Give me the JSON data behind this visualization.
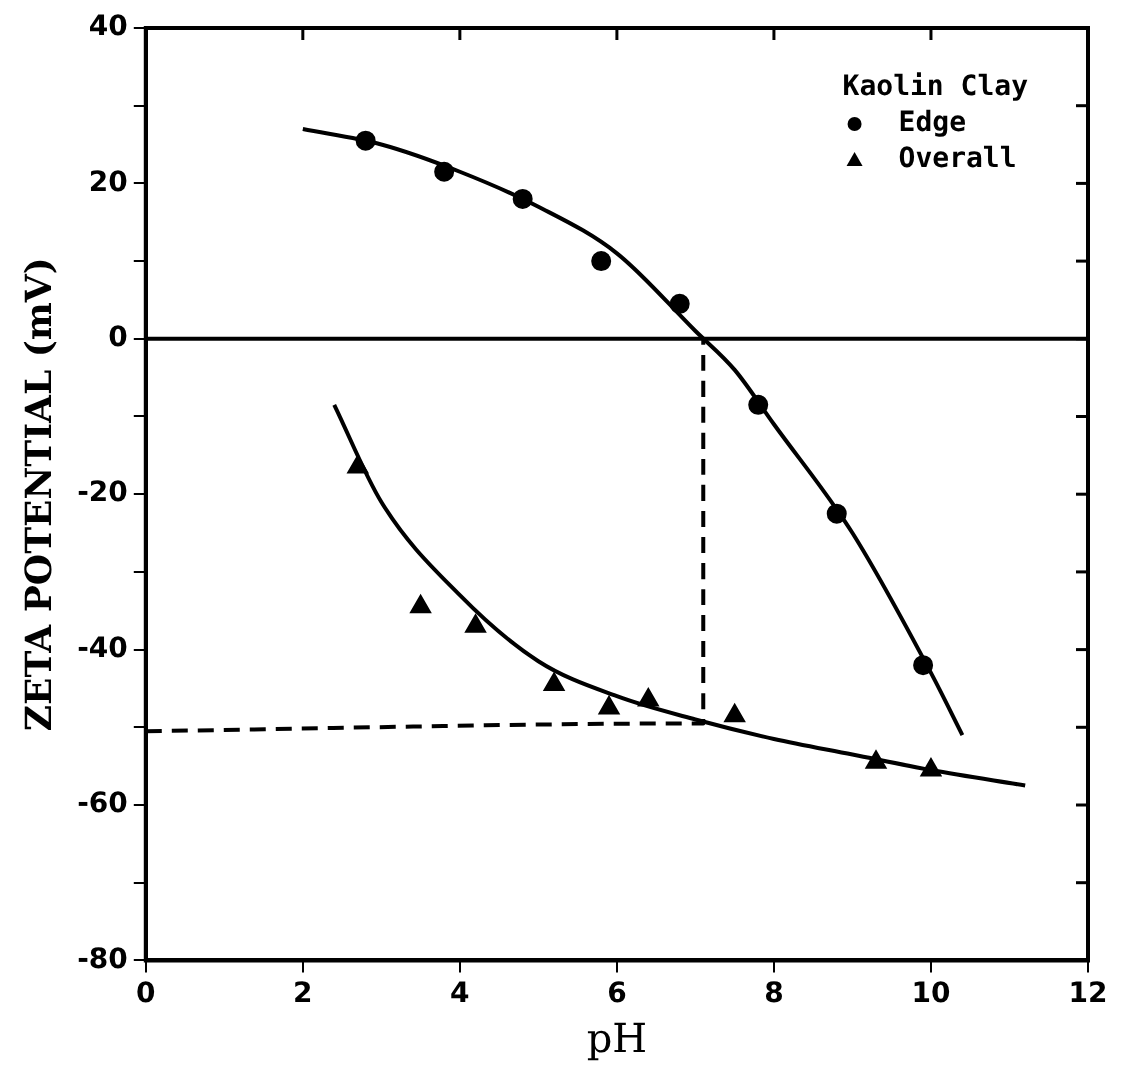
{
  "chart_data": {
    "type": "scatter",
    "xlabel": "pH",
    "ylabel": "ZETA POTENTIAL (mV)",
    "legend_title": "Kaolin Clay",
    "xlim": [
      0,
      12
    ],
    "xticks": [
      0,
      2,
      4,
      6,
      8,
      10,
      12
    ],
    "ylim": [
      -80,
      40
    ],
    "yticks": [
      -80,
      {
        "value": -70,
        "label": null
      },
      -60,
      {
        "value": -50,
        "label": null
      },
      -40,
      {
        "value": -30,
        "label": null
      },
      -20,
      {
        "value": -10,
        "label": null
      },
      0,
      {
        "value": 10,
        "label": null
      },
      20,
      {
        "value": 30,
        "label": null
      },
      40
    ],
    "grid": false,
    "legend": "top right",
    "ref_lines": [
      {
        "axis": "y",
        "value": 0,
        "color": "#000000",
        "line_style": "solid"
      }
    ],
    "series": [
      {
        "name": "Edge",
        "marker": "circle",
        "color": "#000000",
        "x": [
          2.8,
          3.8,
          4.8,
          5.8,
          6.8,
          7.8,
          8.8,
          9.9
        ],
        "values": [
          25.5,
          21.5,
          18,
          10,
          4.5,
          -8.5,
          -22.5,
          -42
        ]
      },
      {
        "name": "Overall",
        "marker": "triangle",
        "color": "#000000",
        "x": [
          2.7,
          3.5,
          4.2,
          5.2,
          5.9,
          6.4,
          7.5,
          9.3,
          10.0
        ],
        "values": [
          -16.5,
          -34.5,
          -37,
          -44.5,
          -47.5,
          -46.5,
          -48.5,
          -54.5,
          -55.5
        ]
      },
      {
        "type": "line",
        "marker": "none",
        "line_style": "solid",
        "color": "#000000",
        "x": [
          2,
          3,
          4,
          5,
          6,
          7,
          7.5,
          8,
          9,
          10,
          10.4
        ],
        "values": [
          27,
          25,
          21.5,
          17,
          11,
          1,
          -4,
          -11,
          -25,
          -43,
          -51
        ]
      },
      {
        "type": "line",
        "marker": "none",
        "line_style": "solid",
        "color": "#000000",
        "x": [
          2.4,
          3,
          4,
          5,
          6,
          7,
          8,
          9,
          10,
          11.2
        ],
        "values": [
          -8.5,
          -21,
          -33,
          -41.5,
          -46,
          -49,
          -51.5,
          -53.5,
          -55.5,
          -57.5
        ]
      },
      {
        "type": "line",
        "marker": "none",
        "line_style": "dashed",
        "color": "#000000",
        "x": [
          0,
          7.1,
          7.1
        ],
        "values": [
          -50.5,
          -49.5,
          0
        ]
      }
    ]
  }
}
